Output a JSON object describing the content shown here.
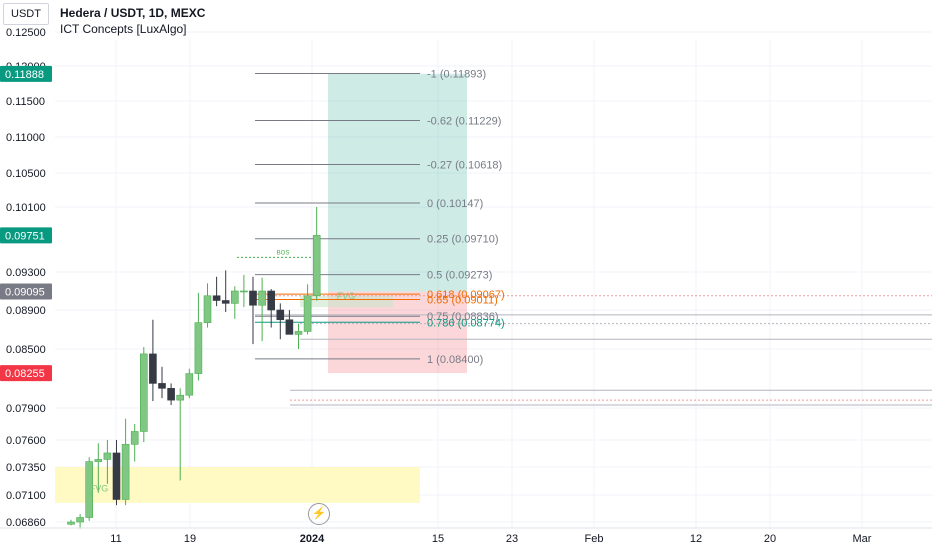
{
  "header": {
    "symbol_button": "USDT",
    "title": "Hedera / USDT, 1D, MEXC",
    "indicator": "ICT Concepts [LuxAlgo]"
  },
  "logo_icon": "lightning-bolt-icon",
  "chart_data": {
    "type": "candlestick",
    "title": "Hedera / USDT, 1D, MEXC",
    "ylim": [
      0.0686,
      0.126
    ],
    "y_ticks": [
      "0.12500",
      "0.12000",
      "0.11500",
      "0.11000",
      "0.10500",
      "0.10100",
      "0.09300",
      "0.08900",
      "0.08500",
      "0.07900",
      "0.07600",
      "0.07350",
      "0.07100",
      "0.06860"
    ],
    "x_ticks": [
      "11",
      "19",
      "2024",
      "15",
      "23",
      "Feb",
      "12",
      "20",
      "Mar"
    ],
    "candles": [
      {
        "o": 0.0684,
        "h": 0.0688,
        "l": 0.0683,
        "c": 0.0686
      },
      {
        "o": 0.0686,
        "h": 0.0693,
        "l": 0.068,
        "c": 0.069
      },
      {
        "o": 0.069,
        "h": 0.0744,
        "l": 0.0687,
        "c": 0.074
      },
      {
        "o": 0.074,
        "h": 0.0757,
        "l": 0.0712,
        "c": 0.0742
      },
      {
        "o": 0.0742,
        "h": 0.076,
        "l": 0.072,
        "c": 0.0748
      },
      {
        "o": 0.0748,
        "h": 0.076,
        "l": 0.0701,
        "c": 0.0706
      },
      {
        "o": 0.0706,
        "h": 0.078,
        "l": 0.0701,
        "c": 0.0756
      },
      {
        "o": 0.0756,
        "h": 0.0775,
        "l": 0.074,
        "c": 0.0768
      },
      {
        "o": 0.0768,
        "h": 0.0852,
        "l": 0.0758,
        "c": 0.0845
      },
      {
        "o": 0.0845,
        "h": 0.088,
        "l": 0.0797,
        "c": 0.0815
      },
      {
        "o": 0.0815,
        "h": 0.0832,
        "l": 0.08,
        "c": 0.081
      },
      {
        "o": 0.081,
        "h": 0.0815,
        "l": 0.0793,
        "c": 0.0798
      },
      {
        "o": 0.0798,
        "h": 0.081,
        "l": 0.0723,
        "c": 0.0803
      },
      {
        "o": 0.0803,
        "h": 0.083,
        "l": 0.08,
        "c": 0.0825
      },
      {
        "o": 0.0825,
        "h": 0.0908,
        "l": 0.0818,
        "c": 0.0877
      },
      {
        "o": 0.0877,
        "h": 0.0918,
        "l": 0.0872,
        "c": 0.0905
      },
      {
        "o": 0.0905,
        "h": 0.0925,
        "l": 0.0894,
        "c": 0.09
      },
      {
        "o": 0.09,
        "h": 0.0932,
        "l": 0.0888,
        "c": 0.0897
      },
      {
        "o": 0.0897,
        "h": 0.0915,
        "l": 0.0881,
        "c": 0.091
      },
      {
        "o": 0.091,
        "h": 0.0927,
        "l": 0.0893,
        "c": 0.091
      },
      {
        "o": 0.091,
        "h": 0.0925,
        "l": 0.0855,
        "c": 0.0895
      },
      {
        "o": 0.0895,
        "h": 0.0924,
        "l": 0.0858,
        "c": 0.091
      },
      {
        "o": 0.091,
        "h": 0.0912,
        "l": 0.0872,
        "c": 0.089
      },
      {
        "o": 0.089,
        "h": 0.0897,
        "l": 0.086,
        "c": 0.088
      },
      {
        "o": 0.088,
        "h": 0.089,
        "l": 0.0865,
        "c": 0.0865
      },
      {
        "o": 0.0865,
        "h": 0.0876,
        "l": 0.085,
        "c": 0.0868
      },
      {
        "o": 0.0868,
        "h": 0.0917,
        "l": 0.0865,
        "c": 0.0905
      },
      {
        "o": 0.0905,
        "h": 0.101,
        "l": 0.09,
        "c": 0.0975
      }
    ],
    "price_labels": [
      {
        "text": "0.11888",
        "value": 0.11888,
        "color": "#089981"
      },
      {
        "text": "0.09751",
        "value": 0.09751,
        "color": "#089981"
      },
      {
        "text": "0.09095",
        "value": 0.09095,
        "color": "#787b86"
      },
      {
        "text": "0.08255",
        "value": 0.08255,
        "color": "#f23645"
      }
    ],
    "fib_levels": [
      {
        "text": "-1 (0.11893)",
        "value": 0.11893
      },
      {
        "text": "-0.62 (0.11229)",
        "value": 0.11229
      },
      {
        "text": "-0.27 (0.10618)",
        "value": 0.10618
      },
      {
        "text": "0 (0.10147)",
        "value": 0.10147
      },
      {
        "text": "0.25 (0.09710)",
        "value": 0.0971
      },
      {
        "text": "0.5 (0.09273)",
        "value": 0.09273
      },
      {
        "text": "0.618 (0.09067)",
        "value": 0.09067,
        "color": "#ef6c00"
      },
      {
        "text": "0.65 (0.09011)",
        "value": 0.09011,
        "color": "#ef6c00"
      },
      {
        "text": "0.75 (0.08836)",
        "value": 0.08836
      },
      {
        "text": "0.786 (0.08774)",
        "value": 0.08774,
        "color": "#089981"
      },
      {
        "text": "1 (0.08400)",
        "value": 0.084
      }
    ],
    "position_tool": {
      "target": 0.11888,
      "entry": 0.09095,
      "stop": 0.08255
    },
    "annotations": [
      {
        "text": "BOS",
        "value": 0.0955
      },
      {
        "text": "FVG",
        "value": 0.0905
      },
      {
        "text": "FVG",
        "value": 0.0716
      }
    ],
    "fvg_zones": [
      {
        "top": 0.0735,
        "bottom": 0.0703,
        "color": "#fff9c4"
      }
    ],
    "horizontal_lines": [
      0.0808,
      0.0798,
      0.0793
    ],
    "up_color": "#81c784",
    "down_color": "#363a45"
  }
}
